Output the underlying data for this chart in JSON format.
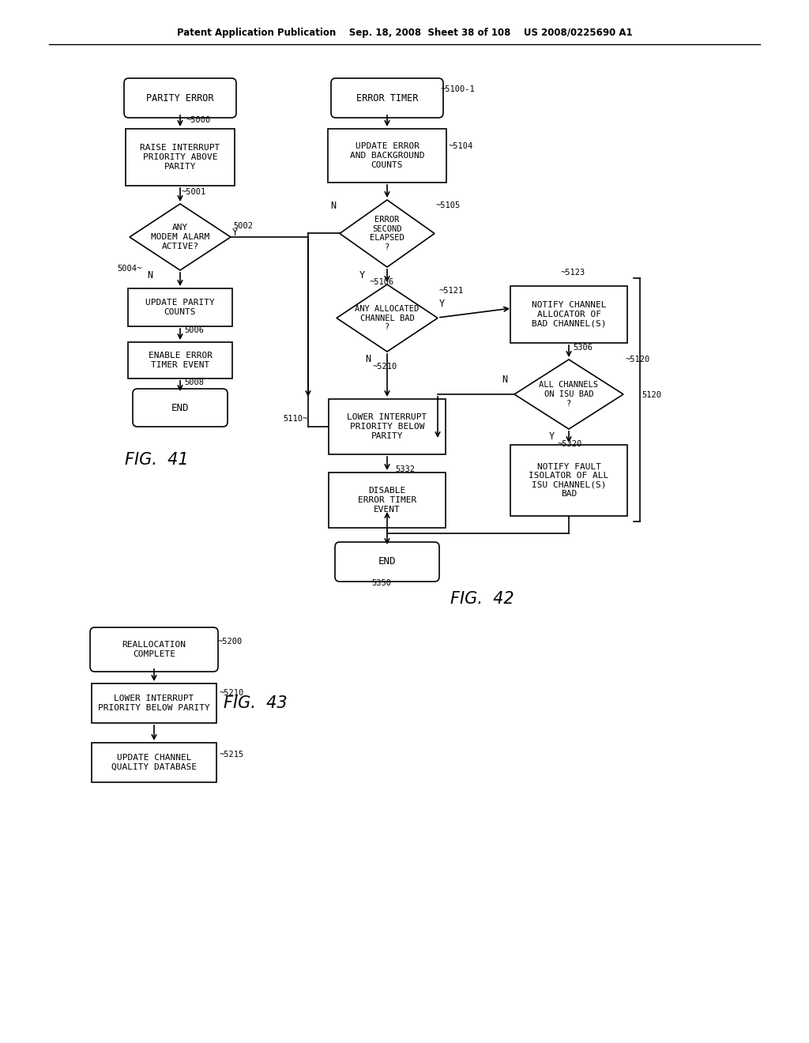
{
  "header": "Patent Application Publication    Sep. 18, 2008  Sheet 38 of 108    US 2008/0225690 A1",
  "bg": "#ffffff",
  "lc": "#000000",
  "fig41": "FIG.  41",
  "fig42": "FIG.  42",
  "fig43": "FIG.  43"
}
